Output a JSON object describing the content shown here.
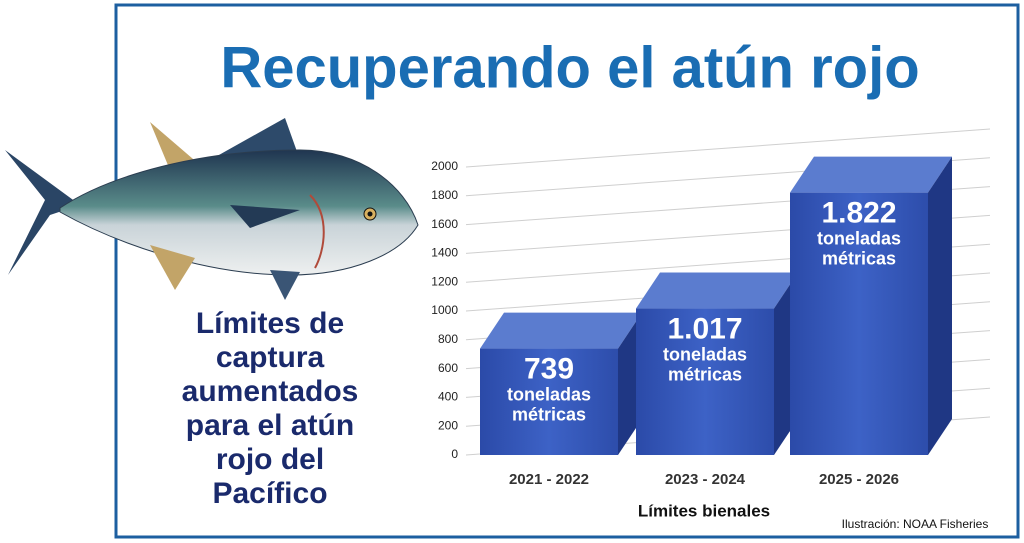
{
  "chart_data": {
    "type": "bar",
    "title": "Recuperando el atún rojo",
    "side_text": [
      "Límites de",
      "captura",
      "aumentados",
      "para el atún",
      "rojo del",
      "Pacífico"
    ],
    "x_label": "Límites bienales",
    "credit": "Ilustración: NOAA Fisheries",
    "categories": [
      "2021 - 2022",
      "2023 - 2024",
      "2025 - 2026"
    ],
    "values": [
      739,
      1017,
      1822
    ],
    "value_labels": [
      "739",
      "1.017",
      "1.822"
    ],
    "unit_label": [
      "toneladas",
      "métricas"
    ],
    "color": "#3456b8",
    "ylim": [
      0,
      2000
    ],
    "yticks": [
      0,
      200,
      400,
      600,
      800,
      1000,
      1200,
      1400,
      1600,
      1800,
      2000
    ],
    "grid": true
  }
}
